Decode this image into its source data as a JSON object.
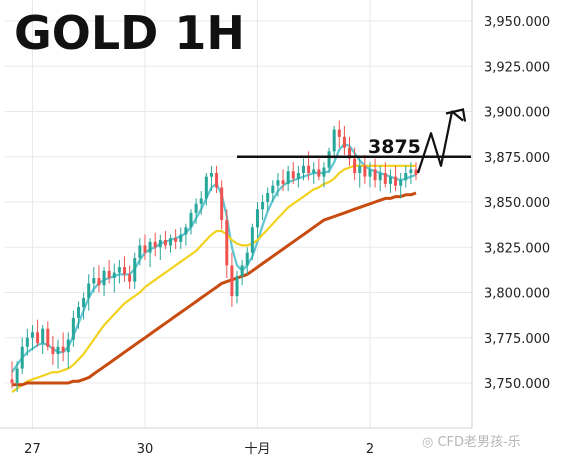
{
  "chart_data": {
    "type": "candlestick",
    "title": "GOLD 1H",
    "xlabel": "",
    "ylabel": "",
    "ylim": [
      3740,
      3960
    ],
    "grid": true,
    "y_ticks": [
      "3,950.000",
      "3,925.000",
      "3,900.000",
      "3,875.000",
      "3,850.000",
      "3,825.000",
      "3,800.000",
      "3,775.000",
      "3,750.000"
    ],
    "x_ticks": [
      "27",
      "30",
      "十月",
      "2"
    ],
    "candles": [
      [
        3752,
        3762,
        3747,
        3750
      ],
      [
        3750,
        3762,
        3745,
        3758
      ],
      [
        3758,
        3775,
        3755,
        3770
      ],
      [
        3770,
        3780,
        3765,
        3775
      ],
      [
        3775,
        3782,
        3768,
        3778
      ],
      [
        3778,
        3785,
        3770,
        3772
      ],
      [
        3772,
        3782,
        3766,
        3780
      ],
      [
        3780,
        3784,
        3768,
        3770
      ],
      [
        3770,
        3776,
        3760,
        3766
      ],
      [
        3766,
        3774,
        3758,
        3770
      ],
      [
        3770,
        3778,
        3762,
        3767
      ],
      [
        3767,
        3778,
        3758,
        3774
      ],
      [
        3774,
        3790,
        3770,
        3786
      ],
      [
        3786,
        3795,
        3780,
        3792
      ],
      [
        3792,
        3800,
        3785,
        3797
      ],
      [
        3797,
        3810,
        3790,
        3805
      ],
      [
        3805,
        3814,
        3800,
        3808
      ],
      [
        3808,
        3815,
        3800,
        3804
      ],
      [
        3804,
        3814,
        3798,
        3812
      ],
      [
        3812,
        3818,
        3805,
        3808
      ],
      [
        3808,
        3816,
        3800,
        3811
      ],
      [
        3811,
        3818,
        3805,
        3814
      ],
      [
        3814,
        3820,
        3806,
        3810
      ],
      [
        3810,
        3815,
        3802,
        3806
      ],
      [
        3806,
        3822,
        3802,
        3819
      ],
      [
        3819,
        3830,
        3815,
        3826
      ],
      [
        3826,
        3832,
        3818,
        3822
      ],
      [
        3822,
        3830,
        3814,
        3828
      ],
      [
        3828,
        3833,
        3820,
        3825
      ],
      [
        3825,
        3832,
        3818,
        3829
      ],
      [
        3829,
        3834,
        3824,
        3826
      ],
      [
        3826,
        3832,
        3822,
        3830
      ],
      [
        3830,
        3835,
        3824,
        3828
      ],
      [
        3828,
        3836,
        3824,
        3832
      ],
      [
        3832,
        3838,
        3826,
        3836
      ],
      [
        3836,
        3846,
        3832,
        3844
      ],
      [
        3844,
        3852,
        3838,
        3849
      ],
      [
        3849,
        3856,
        3843,
        3852
      ],
      [
        3852,
        3866,
        3848,
        3864
      ],
      [
        3864,
        3870,
        3856,
        3866
      ],
      [
        3866,
        3870,
        3855,
        3858
      ],
      [
        3858,
        3862,
        3835,
        3840
      ],
      [
        3840,
        3846,
        3808,
        3815
      ],
      [
        3815,
        3822,
        3792,
        3798
      ],
      [
        3798,
        3812,
        3794,
        3809
      ],
      [
        3809,
        3818,
        3804,
        3815
      ],
      [
        3815,
        3825,
        3810,
        3822
      ],
      [
        3822,
        3838,
        3818,
        3836
      ],
      [
        3836,
        3850,
        3830,
        3846
      ],
      [
        3846,
        3854,
        3840,
        3850
      ],
      [
        3850,
        3858,
        3845,
        3855
      ],
      [
        3855,
        3862,
        3850,
        3859
      ],
      [
        3859,
        3866,
        3853,
        3862
      ],
      [
        3862,
        3868,
        3856,
        3860
      ],
      [
        3860,
        3870,
        3856,
        3867
      ],
      [
        3867,
        3872,
        3860,
        3863
      ],
      [
        3863,
        3870,
        3858,
        3866
      ],
      [
        3866,
        3874,
        3862,
        3870
      ],
      [
        3870,
        3878,
        3862,
        3866
      ],
      [
        3866,
        3872,
        3860,
        3868
      ],
      [
        3868,
        3874,
        3862,
        3864
      ],
      [
        3864,
        3872,
        3858,
        3869
      ],
      [
        3869,
        3880,
        3866,
        3878
      ],
      [
        3878,
        3892,
        3874,
        3890
      ],
      [
        3890,
        3895,
        3880,
        3886
      ],
      [
        3886,
        3892,
        3876,
        3880
      ],
      [
        3880,
        3886,
        3870,
        3874
      ],
      [
        3874,
        3880,
        3862,
        3866
      ],
      [
        3866,
        3874,
        3858,
        3870
      ],
      [
        3870,
        3876,
        3860,
        3864
      ],
      [
        3864,
        3872,
        3858,
        3868
      ],
      [
        3868,
        3874,
        3858,
        3862
      ],
      [
        3862,
        3870,
        3856,
        3866
      ],
      [
        3866,
        3872,
        3858,
        3860
      ],
      [
        3860,
        3868,
        3855,
        3864
      ],
      [
        3864,
        3870,
        3856,
        3859
      ],
      [
        3859,
        3866,
        3852,
        3862
      ],
      [
        3862,
        3870,
        3858,
        3866
      ],
      [
        3866,
        3872,
        3860,
        3868
      ],
      [
        3868,
        3872,
        3862,
        3865
      ]
    ],
    "series": [
      {
        "color": "#5fc6d2",
        "values": [
          3756,
          3760,
          3764,
          3767,
          3769,
          3771,
          3772,
          3771,
          3769,
          3767,
          3767,
          3770,
          3776,
          3783,
          3790,
          3797,
          3802,
          3805,
          3807,
          3808,
          3809,
          3810,
          3810,
          3810,
          3813,
          3818,
          3822,
          3824,
          3825,
          3827,
          3828,
          3829,
          3830,
          3831,
          3833,
          3836,
          3841,
          3846,
          3852,
          3858,
          3860,
          3854,
          3842,
          3825,
          3815,
          3812,
          3815,
          3820,
          3828,
          3837,
          3845,
          3851,
          3856,
          3859,
          3861,
          3862,
          3863,
          3864,
          3865,
          3866,
          3866,
          3866,
          3867,
          3872,
          3879,
          3882,
          3881,
          3877,
          3873,
          3870,
          3868,
          3867,
          3866,
          3865,
          3864,
          3863,
          3862,
          3863,
          3864,
          3865
        ]
      },
      {
        "color": "#f2d21c",
        "values": [
          3745,
          3747,
          3749,
          3751,
          3752,
          3753,
          3754,
          3755,
          3756,
          3756,
          3757,
          3758,
          3760,
          3763,
          3766,
          3770,
          3774,
          3778,
          3782,
          3785,
          3788,
          3791,
          3794,
          3796,
          3798,
          3800,
          3803,
          3805,
          3807,
          3809,
          3811,
          3813,
          3815,
          3817,
          3819,
          3821,
          3823,
          3826,
          3829,
          3832,
          3834,
          3834,
          3832,
          3829,
          3827,
          3826,
          3826,
          3827,
          3829,
          3832,
          3835,
          3838,
          3841,
          3844,
          3847,
          3849,
          3851,
          3853,
          3855,
          3857,
          3858,
          3860,
          3861,
          3863,
          3866,
          3868,
          3869,
          3870,
          3870,
          3870,
          3870,
          3870,
          3870,
          3870,
          3870,
          3870,
          3870,
          3870,
          3870,
          3870
        ]
      },
      {
        "color": "#c84b10",
        "values": [
          3749,
          3749,
          3749,
          3750,
          3750,
          3750,
          3750,
          3750,
          3750,
          3750,
          3750,
          3750,
          3751,
          3751,
          3752,
          3753,
          3755,
          3757,
          3759,
          3761,
          3763,
          3765,
          3767,
          3769,
          3771,
          3773,
          3775,
          3777,
          3779,
          3781,
          3783,
          3785,
          3787,
          3789,
          3791,
          3793,
          3795,
          3797,
          3799,
          3801,
          3803,
          3805,
          3806,
          3807,
          3808,
          3809,
          3810,
          3812,
          3814,
          3816,
          3818,
          3820,
          3822,
          3824,
          3826,
          3828,
          3830,
          3832,
          3834,
          3836,
          3838,
          3840,
          3841,
          3842,
          3843,
          3844,
          3845,
          3846,
          3847,
          3848,
          3849,
          3850,
          3851,
          3852,
          3852,
          3853,
          3853,
          3854,
          3854,
          3855
        ]
      }
    ],
    "annotations": {
      "level_label": "3875",
      "level_value": 3875,
      "projection_y": [
        3866,
        3888,
        3870,
        3900,
        3895
      ]
    },
    "colors": {
      "up": "#27a69a",
      "down": "#ef5350",
      "grid": "#e8e8e8",
      "ma_fast": "#5fc6d2",
      "ma_mid": "#f2d21c",
      "ma_slow": "#c84b10"
    }
  },
  "watermark": "CFD老男孩-乐"
}
